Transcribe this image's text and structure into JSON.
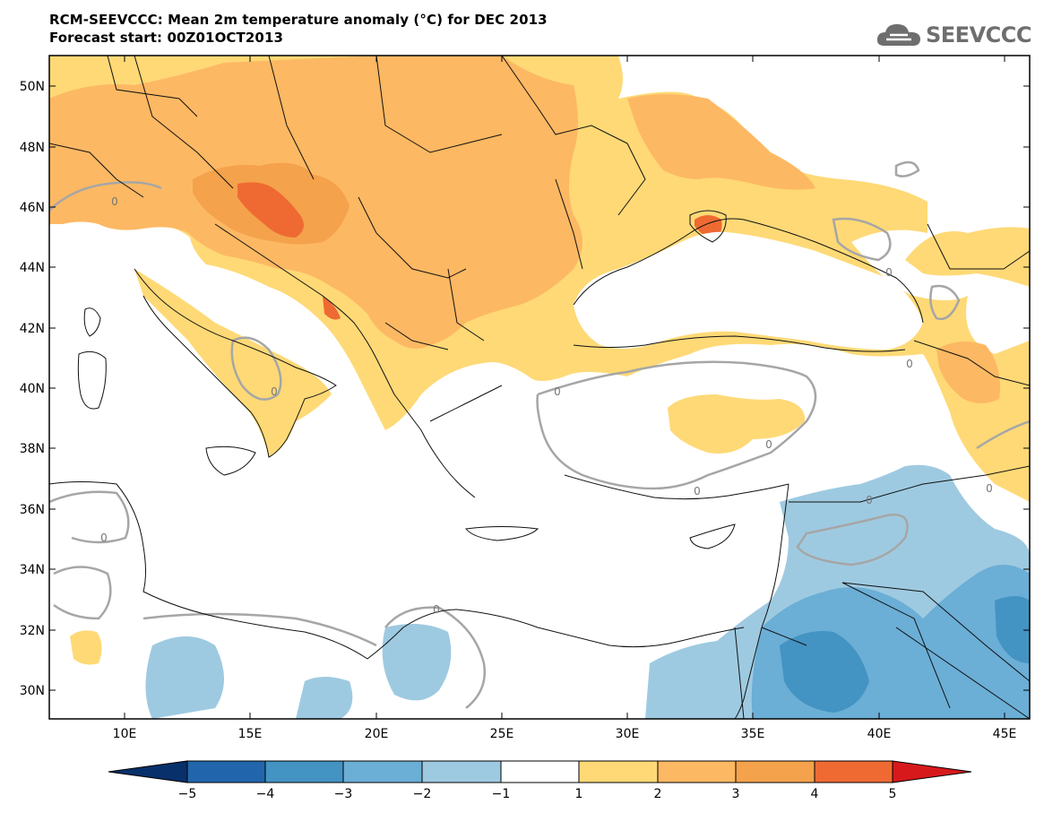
{
  "header": {
    "title_line1": "RCM-SEEVCCC: Mean 2m temperature anomaly (°C) for DEC 2013",
    "title_line2": "Forecast start: 00Z01OCT2013",
    "logo_text": "SEEVCCC"
  },
  "map": {
    "lon_range": [
      7,
      46
    ],
    "lat_range": [
      29,
      51
    ],
    "lat_ticks": [
      "50N",
      "48N",
      "46N",
      "44N",
      "42N",
      "40N",
      "38N",
      "36N",
      "34N",
      "32N",
      "30N"
    ],
    "lon_ticks": [
      "10E",
      "15E",
      "20E",
      "25E",
      "30E",
      "35E",
      "40E",
      "45E"
    ],
    "contour_label": "0"
  },
  "colorbar": {
    "labels": [
      "−5",
      "−4",
      "−3",
      "−2",
      "−1",
      "1",
      "2",
      "3",
      "4",
      "5"
    ],
    "colors": {
      "below_m5": "#08306b",
      "m5_m4": "#2166ac",
      "m4_m3": "#4393c3",
      "m3_m2": "#6baed6",
      "m2_m1": "#9ecae1",
      "m1_p1": "#ffffff",
      "p1_p2": "#fed976",
      "p2_p3": "#fdb863",
      "p3_p4": "#f4a24b",
      "p4_p5": "#ef6a32",
      "above_p5": "#d7191c"
    }
  }
}
